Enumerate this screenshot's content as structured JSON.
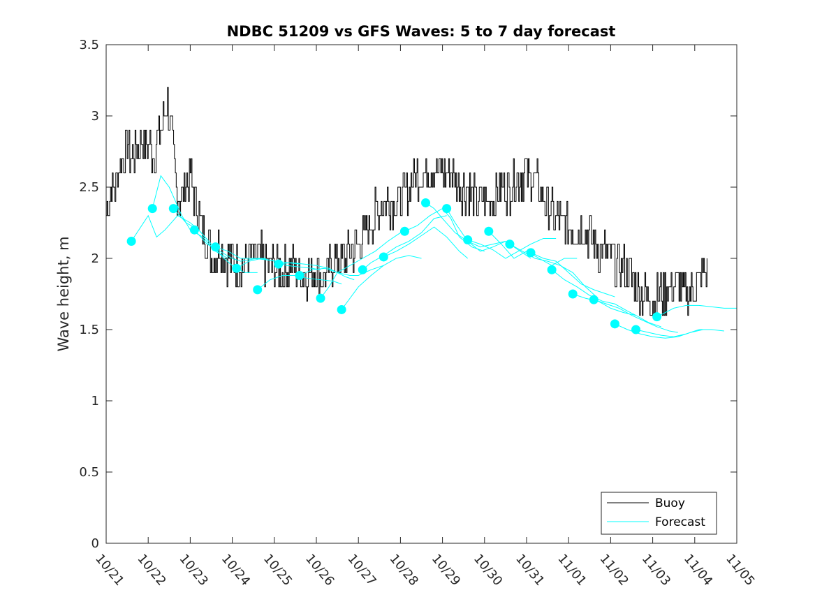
{
  "chart_data": {
    "type": "line",
    "title": "NDBC 51209 vs GFS Waves: 5 to 7 day forecast",
    "xlabel": "",
    "ylabel": "Wave height, m",
    "xlim": [
      0,
      15
    ],
    "ylim": [
      0,
      3.5
    ],
    "yticks": [
      0,
      0.5,
      1,
      1.5,
      2,
      2.5,
      3,
      3.5
    ],
    "ytick_labels": [
      "0",
      "0.5",
      "1",
      "1.5",
      "2",
      "2.5",
      "3",
      "3.5"
    ],
    "xticks": [
      0,
      1,
      2,
      3,
      4,
      5,
      6,
      7,
      8,
      9,
      10,
      11,
      12,
      13,
      14,
      15
    ],
    "xtick_labels": [
      "10/21",
      "10/22",
      "10/23",
      "10/24",
      "10/25",
      "10/26",
      "10/27",
      "10/28",
      "10/29",
      "10/30",
      "10/31",
      "11/01",
      "11/02",
      "11/03",
      "11/04",
      "11/05"
    ],
    "colors": {
      "buoy": "#000000",
      "forecast": "#00FFFF",
      "axes": "#262626"
    },
    "legend": {
      "position": "bottom-right",
      "entries": [
        {
          "label": "Buoy",
          "color": "#000000"
        },
        {
          "label": "Forecast",
          "color": "#00FFFF"
        }
      ]
    },
    "buoy_anchor": {
      "x": [
        0,
        0.1,
        0.2,
        0.35,
        0.45,
        0.5,
        0.6,
        0.75,
        0.85,
        1.0,
        1.1,
        1.2,
        1.3,
        1.35,
        1.45,
        1.55,
        1.65,
        1.75,
        1.85,
        2.0,
        2.1,
        2.2,
        2.3,
        2.4,
        2.5,
        2.6,
        2.7,
        2.8,
        2.9,
        3.0,
        3.2,
        3.4,
        3.6,
        3.7,
        3.8,
        4.0,
        4.2,
        4.4,
        4.6,
        4.8,
        5.0,
        5.2,
        5.4,
        5.6,
        5.8,
        6.0,
        6.2,
        6.4,
        6.6,
        6.8,
        7.0,
        7.2,
        7.4,
        7.6,
        7.8,
        8.0,
        8.2,
        8.4,
        8.6,
        8.8,
        9.0,
        9.2,
        9.4,
        9.6,
        9.8,
        10.0,
        10.2,
        10.4,
        10.6,
        10.8,
        11.0,
        11.2,
        11.4,
        11.6,
        11.8,
        12.0,
        12.2,
        12.4,
        12.6,
        12.8,
        13.0,
        13.2,
        13.4,
        13.6,
        13.8,
        14.0,
        14.1,
        14.2,
        14.3
      ],
      "y": [
        2.3,
        2.5,
        2.5,
        2.7,
        2.75,
        2.8,
        2.7,
        2.8,
        2.8,
        2.8,
        2.75,
        2.8,
        2.9,
        3.0,
        3.1,
        2.9,
        2.5,
        2.4,
        2.5,
        2.6,
        2.4,
        2.3,
        2.2,
        2.1,
        2.0,
        2.0,
        2.1,
        2.0,
        2.0,
        2.0,
        1.95,
        2.0,
        2.0,
        2.0,
        1.95,
        1.95,
        1.9,
        1.95,
        1.9,
        1.9,
        1.9,
        1.85,
        2.0,
        2.0,
        2.05,
        2.1,
        2.2,
        2.3,
        2.4,
        2.4,
        2.4,
        2.5,
        2.6,
        2.6,
        2.65,
        2.6,
        2.6,
        2.5,
        2.5,
        2.4,
        2.4,
        2.4,
        2.5,
        2.5,
        2.55,
        2.6,
        2.55,
        2.4,
        2.3,
        2.25,
        2.2,
        2.2,
        2.2,
        2.1,
        2.05,
        2.0,
        1.95,
        1.9,
        1.8,
        1.75,
        1.7,
        1.75,
        1.8,
        1.8,
        1.75,
        1.8,
        1.85,
        1.9,
        1.9
      ]
    },
    "forecast_series": [
      {
        "x": [
          0.6,
          1.0,
          1.2,
          1.4,
          1.7,
          2.0,
          2.2,
          2.5
        ],
        "y": [
          2.12,
          2.3,
          2.15,
          2.2,
          2.3,
          2.25,
          2.2,
          2.1
        ]
      },
      {
        "x": [
          1.1,
          1.3,
          1.5,
          1.8,
          2.0,
          2.3,
          2.6,
          2.9
        ],
        "y": [
          2.35,
          2.58,
          2.5,
          2.3,
          2.2,
          2.15,
          2.05,
          2.0
        ]
      },
      {
        "x": [
          1.6,
          1.9,
          2.2,
          2.5,
          2.8,
          3.0,
          3.3,
          3.6
        ],
        "y": [
          2.35,
          2.25,
          2.2,
          2.1,
          2.0,
          1.95,
          1.9,
          1.9
        ]
      },
      {
        "x": [
          2.1,
          2.4,
          2.7,
          3.0,
          3.2,
          3.4,
          3.6,
          3.8
        ],
        "y": [
          2.2,
          2.1,
          2.05,
          2.0,
          1.98,
          1.99,
          2.0,
          2.0
        ]
      },
      {
        "x": [
          2.6,
          2.9,
          3.2,
          3.5,
          3.8,
          4.1,
          4.3,
          4.6
        ],
        "y": [
          2.08,
          2.05,
          2.0,
          2.0,
          1.99,
          1.98,
          1.97,
          1.96
        ]
      },
      {
        "x": [
          3.1,
          3.4,
          3.7,
          4.0,
          4.3,
          4.6,
          4.9,
          5.1
        ],
        "y": [
          1.93,
          1.98,
          2.0,
          1.98,
          1.95,
          1.94,
          1.93,
          1.92
        ]
      },
      {
        "x": [
          3.6,
          3.9,
          4.2,
          4.5,
          4.8,
          5.1,
          5.4,
          5.6
        ],
        "y": [
          1.78,
          1.85,
          1.88,
          1.88,
          1.86,
          1.85,
          1.84,
          1.82
        ]
      },
      {
        "x": [
          4.1,
          4.4,
          4.7,
          5.0,
          5.3,
          5.5,
          5.7,
          5.9
        ],
        "y": [
          1.96,
          1.97,
          1.96,
          1.95,
          1.93,
          1.9,
          1.87,
          1.85
        ]
      },
      {
        "x": [
          4.6,
          4.9,
          5.2,
          5.5,
          5.8,
          6.0,
          6.3,
          6.6
        ],
        "y": [
          1.88,
          1.92,
          1.93,
          1.9,
          1.88,
          1.88,
          1.92,
          1.95
        ]
      },
      {
        "x": [
          5.1,
          5.3,
          5.5,
          5.8,
          6.1,
          6.4,
          6.7,
          7.0
        ],
        "y": [
          1.72,
          1.8,
          1.9,
          1.95,
          2.0,
          2.05,
          2.12,
          2.18
        ]
      },
      {
        "x": [
          5.6,
          5.8,
          6.0,
          6.3,
          6.6,
          6.9,
          7.2,
          7.5
        ],
        "y": [
          1.64,
          1.72,
          1.8,
          1.88,
          1.95,
          2.0,
          2.02,
          2.0
        ]
      },
      {
        "x": [
          6.1,
          6.3,
          6.6,
          6.9,
          7.2,
          7.5,
          7.8,
          8.1
        ],
        "y": [
          1.92,
          1.97,
          2.02,
          2.08,
          2.12,
          2.18,
          2.28,
          2.3
        ]
      },
      {
        "x": [
          6.6,
          6.9,
          7.2,
          7.5,
          7.8,
          8.1,
          8.4,
          8.6
        ],
        "y": [
          2.01,
          2.05,
          2.1,
          2.16,
          2.22,
          2.15,
          2.05,
          2.0
        ]
      },
      {
        "x": [
          7.1,
          7.4,
          7.7,
          8.0,
          8.2,
          8.4,
          8.7,
          9.0
        ],
        "y": [
          2.19,
          2.23,
          2.3,
          2.35,
          2.28,
          2.15,
          2.08,
          2.05
        ]
      },
      {
        "x": [
          7.6,
          7.8,
          8.0,
          8.3,
          8.6,
          8.9,
          9.2,
          9.5
        ],
        "y": [
          2.39,
          2.35,
          2.28,
          2.18,
          2.12,
          2.08,
          2.1,
          2.12
        ]
      },
      {
        "x": [
          8.1,
          8.3,
          8.6,
          8.9,
          9.2,
          9.5,
          9.8,
          10.1
        ],
        "y": [
          2.35,
          2.25,
          2.12,
          2.05,
          2.08,
          2.12,
          2.06,
          2.0
        ]
      },
      {
        "x": [
          8.6,
          8.9,
          9.2,
          9.5,
          9.8,
          10.1,
          10.4,
          10.7
        ],
        "y": [
          2.13,
          2.1,
          2.06,
          2.0,
          2.05,
          2.1,
          2.14,
          2.14
        ]
      },
      {
        "x": [
          9.1,
          9.4,
          9.7,
          10.0,
          10.3,
          10.6,
          10.9,
          11.2
        ],
        "y": [
          2.19,
          2.1,
          2.0,
          2.05,
          2.0,
          1.95,
          2.0,
          2.0
        ]
      },
      {
        "x": [
          9.6,
          9.9,
          10.2,
          10.5,
          10.8,
          11.1,
          11.4,
          11.7
        ],
        "y": [
          2.1,
          2.05,
          2.0,
          1.98,
          1.95,
          1.9,
          1.8,
          1.72
        ]
      },
      {
        "x": [
          10.1,
          10.4,
          10.7,
          11.0,
          11.3,
          11.6,
          11.9,
          12.1
        ],
        "y": [
          2.04,
          2.0,
          1.98,
          1.9,
          1.82,
          1.78,
          1.75,
          1.73
        ]
      },
      {
        "x": [
          10.6,
          10.9,
          11.2,
          11.5,
          11.8,
          12.1,
          12.4,
          12.6
        ],
        "y": [
          1.92,
          1.85,
          1.8,
          1.74,
          1.7,
          1.68,
          1.63,
          1.6
        ]
      },
      {
        "x": [
          11.1,
          11.4,
          11.7,
          12.0,
          12.3,
          12.6,
          12.9,
          13.2
        ],
        "y": [
          1.75,
          1.72,
          1.7,
          1.65,
          1.62,
          1.6,
          1.55,
          1.52
        ]
      },
      {
        "x": [
          11.6,
          11.9,
          12.2,
          12.5,
          12.8,
          13.1,
          13.4,
          13.6
        ],
        "y": [
          1.71,
          1.68,
          1.65,
          1.6,
          1.56,
          1.52,
          1.49,
          1.48
        ]
      },
      {
        "x": [
          12.1,
          12.4,
          12.7,
          13.0,
          13.3,
          13.6,
          13.9,
          14.2
        ],
        "y": [
          1.54,
          1.5,
          1.47,
          1.45,
          1.44,
          1.45,
          1.48,
          1.5
        ]
      },
      {
        "x": [
          12.6,
          12.9,
          13.2,
          13.5,
          13.8,
          14.1,
          14.4,
          14.7
        ],
        "y": [
          1.5,
          1.48,
          1.46,
          1.45,
          1.47,
          1.5,
          1.5,
          1.49
        ]
      },
      {
        "x": [
          13.1,
          13.3,
          13.5,
          13.8,
          14.1,
          14.4,
          14.7,
          15.0
        ],
        "y": [
          1.59,
          1.62,
          1.65,
          1.67,
          1.67,
          1.66,
          1.65,
          1.65
        ]
      }
    ]
  }
}
